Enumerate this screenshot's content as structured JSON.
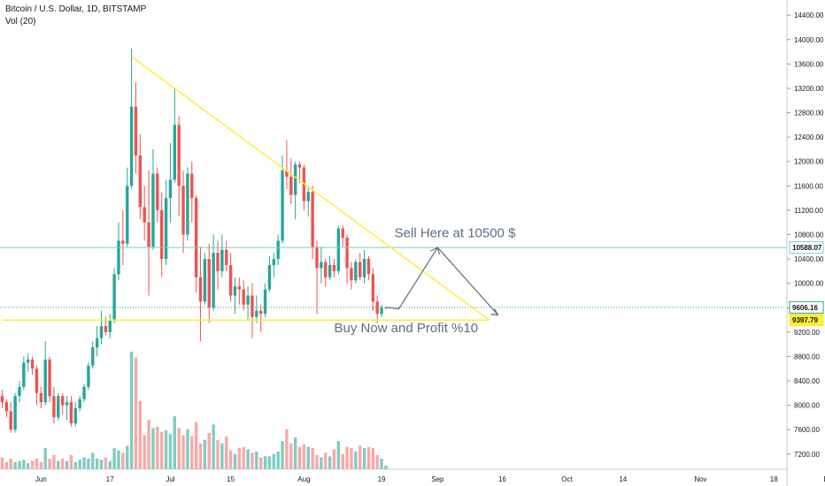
{
  "legend": {
    "title": "Bitcoin / U.S. Dollar, 1D, BITSTAMP",
    "volume": "Vol (20)"
  },
  "colors": {
    "up": "#26a69a",
    "down": "#ef5350",
    "up_volume": "#80cbc4",
    "down_volume": "#f7a9a7",
    "trendline": "#ffeb3b",
    "hline": "#80cbc4",
    "arrow": "#5d6d82",
    "support_badge": "#ffeb3b"
  },
  "chart_data": {
    "type": "candlestick",
    "title": "Bitcoin / U.S. Dollar, 1D, BITSTAMP",
    "xlabel": "",
    "ylabel": "",
    "ylim": [
      6950,
      14650
    ],
    "grid": false,
    "y_ticks": [
      "14400.00",
      "14000.00",
      "13600.00",
      "13200.00",
      "12800.00",
      "12400.00",
      "12000.00",
      "11600.00",
      "11200.00",
      "10800.00",
      "10400.00",
      "10000.00",
      "9600.00",
      "9200.00",
      "8800.00",
      "8400.00",
      "8000.00",
      "7600.00",
      "7200.00"
    ],
    "x_ticks": [
      {
        "label": "Jun",
        "day": 9
      },
      {
        "label": "17",
        "day": 25
      },
      {
        "label": "Jul",
        "day": 39
      },
      {
        "label": "15",
        "day": 53
      },
      {
        "label": "Aug",
        "day": 70
      },
      {
        "label": "19",
        "day": 88
      },
      {
        "label": "Sep",
        "day": 101
      },
      {
        "label": "16",
        "day": 116
      },
      {
        "label": "Oct",
        "day": 131
      },
      {
        "label": "14",
        "day": 144
      },
      {
        "label": "Nov",
        "day": 162
      },
      {
        "label": "18",
        "day": 179
      },
      {
        "label": "Dec",
        "day": 192
      }
    ],
    "price_labels": [
      {
        "value": 10588.07,
        "text": "10588.07",
        "style": "hline"
      },
      {
        "value": 9606.16,
        "text": "9606.16",
        "style": "current"
      },
      {
        "value": 9397.79,
        "text": "9397.79",
        "style": "support"
      }
    ],
    "candles_ohlc": [
      [
        8150,
        8250,
        7950,
        8050
      ],
      [
        8050,
        8100,
        7800,
        7900
      ],
      [
        7900,
        8050,
        7550,
        7600
      ],
      [
        7600,
        8200,
        7550,
        8150
      ],
      [
        8150,
        8400,
        8050,
        8300
      ],
      [
        8300,
        8800,
        8250,
        8700
      ],
      [
        8700,
        8850,
        8550,
        8750
      ],
      [
        8750,
        8800,
        8500,
        8600
      ],
      [
        8600,
        8650,
        8000,
        8200
      ],
      [
        8200,
        8300,
        7950,
        8050
      ],
      [
        8050,
        9050,
        8000,
        8750
      ],
      [
        8750,
        8800,
        8050,
        8150
      ],
      [
        8150,
        8300,
        7700,
        7800
      ],
      [
        7800,
        8200,
        7750,
        8150
      ],
      [
        8150,
        8200,
        7850,
        8000
      ],
      [
        8000,
        8150,
        7750,
        8050
      ],
      [
        8050,
        8150,
        7650,
        7700
      ],
      [
        7700,
        8050,
        7650,
        7950
      ],
      [
        7950,
        8150,
        7900,
        8100
      ],
      [
        8100,
        8350,
        8050,
        8300
      ],
      [
        8300,
        8700,
        8250,
        8650
      ],
      [
        8650,
        9050,
        8600,
        8950
      ],
      [
        8950,
        9300,
        8800,
        9100
      ],
      [
        9100,
        9550,
        9000,
        9300
      ],
      [
        9300,
        9450,
        9150,
        9200
      ],
      [
        9200,
        9500,
        9100,
        9400
      ],
      [
        9400,
        10250,
        9350,
        10150
      ],
      [
        10150,
        11000,
        10050,
        10700
      ],
      [
        10700,
        11200,
        10300,
        10650
      ],
      [
        10650,
        11900,
        10600,
        11600
      ],
      [
        11600,
        13850,
        11550,
        12900
      ],
      [
        12900,
        13300,
        11800,
        12100
      ],
      [
        12100,
        12450,
        11050,
        11250
      ],
      [
        11250,
        11600,
        10700,
        11000
      ],
      [
        11000,
        11850,
        9800,
        10600
      ],
      [
        10600,
        12200,
        10550,
        11800
      ],
      [
        11800,
        11900,
        11000,
        11200
      ],
      [
        11200,
        11500,
        10100,
        10400
      ],
      [
        10400,
        11700,
        10300,
        11400
      ],
      [
        11400,
        12300,
        11000,
        11700
      ],
      [
        11700,
        13200,
        11650,
        12600
      ],
      [
        12600,
        12750,
        11100,
        11600
      ],
      [
        11600,
        11850,
        10500,
        10800
      ],
      [
        10800,
        11900,
        10700,
        11800
      ],
      [
        11800,
        12000,
        11000,
        11400
      ],
      [
        11400,
        11450,
        9850,
        10100
      ],
      [
        10100,
        10600,
        9050,
        9700
      ],
      [
        9700,
        10500,
        9650,
        10400
      ],
      [
        10400,
        10650,
        9350,
        9600
      ],
      [
        9600,
        10800,
        9550,
        10500
      ],
      [
        10500,
        10700,
        9900,
        10200
      ],
      [
        10200,
        10800,
        10100,
        10550
      ],
      [
        10550,
        10700,
        10200,
        10300
      ],
      [
        10300,
        10500,
        9700,
        9800
      ],
      [
        9800,
        10100,
        9500,
        9950
      ],
      [
        9950,
        10100,
        9650,
        9900
      ],
      [
        9900,
        10050,
        9550,
        9650
      ],
      [
        9650,
        9950,
        9400,
        9800
      ],
      [
        9800,
        10000,
        9100,
        9450
      ],
      [
        9450,
        9800,
        9350,
        9550
      ],
      [
        9550,
        9650,
        9200,
        9500
      ],
      [
        9500,
        10000,
        9450,
        9900
      ],
      [
        9900,
        10450,
        9850,
        10300
      ],
      [
        10300,
        10500,
        10100,
        10400
      ],
      [
        10400,
        10800,
        10300,
        10700
      ],
      [
        10700,
        12100,
        10650,
        11850
      ],
      [
        11850,
        12350,
        11550,
        11750
      ],
      [
        11750,
        12050,
        11300,
        11450
      ],
      [
        11450,
        12000,
        11050,
        11950
      ],
      [
        11950,
        12000,
        11650,
        11900
      ],
      [
        11900,
        11950,
        11200,
        11350
      ],
      [
        11350,
        11600,
        11100,
        11500
      ],
      [
        11500,
        11600,
        10400,
        10600
      ],
      [
        10600,
        10700,
        9500,
        10250
      ],
      [
        10250,
        10600,
        10000,
        10350
      ],
      [
        10350,
        10400,
        9950,
        10100
      ],
      [
        10100,
        10450,
        10050,
        10300
      ],
      [
        10300,
        10400,
        10100,
        10200
      ],
      [
        10200,
        10950,
        10150,
        10900
      ],
      [
        10900,
        10950,
        10600,
        10750
      ],
      [
        10750,
        10800,
        10000,
        10250
      ],
      [
        10250,
        10350,
        9900,
        10050
      ],
      [
        10050,
        10400,
        10000,
        10350
      ],
      [
        10350,
        10500,
        10050,
        10100
      ],
      [
        10100,
        10550,
        10000,
        10400
      ],
      [
        10400,
        10450,
        10050,
        10150
      ],
      [
        10150,
        10250,
        9550,
        9700
      ],
      [
        9700,
        9800,
        9350,
        9500
      ],
      [
        9500,
        9650,
        9450,
        9600
      ],
      [
        9600,
        9620,
        9580,
        9606
      ]
    ],
    "volume_scale_max": 100,
    "volume_pct": [
      10,
      6,
      9,
      6,
      7,
      8,
      5,
      7,
      9,
      6,
      18,
      9,
      12,
      7,
      9,
      7,
      12,
      6,
      8,
      10,
      9,
      14,
      9,
      8,
      10,
      7,
      18,
      16,
      14,
      20,
      100,
      95,
      58,
      29,
      42,
      35,
      36,
      32,
      33,
      30,
      45,
      35,
      29,
      34,
      28,
      40,
      22,
      25,
      31,
      38,
      25,
      22,
      28,
      16,
      13,
      18,
      19,
      17,
      14,
      15,
      10,
      11,
      11,
      13,
      15,
      24,
      34,
      22,
      27,
      19,
      21,
      19,
      18,
      12,
      10,
      14,
      11,
      17,
      24,
      13,
      19,
      18,
      15,
      20,
      18,
      19,
      18,
      12,
      9,
      3
    ],
    "series": [
      {
        "name": "Vol (20)",
        "values": []
      }
    ],
    "trendlines": [
      {
        "from": {
          "day": 30,
          "price": 13720
        },
        "to": {
          "day": 113,
          "price": 9397.79
        }
      },
      {
        "from": {
          "day": 0,
          "price": 9397.79
        },
        "to": {
          "day": 113,
          "price": 9397.79
        }
      }
    ],
    "arrow_path": [
      {
        "day": 89,
        "price": 9606.16
      },
      {
        "day": 92,
        "price": 9580
      },
      {
        "day": 101,
        "price": 10588.07
      },
      {
        "day": 115,
        "price": 9480
      }
    ],
    "annotations": [
      {
        "text": "Sell Here at 10500 $",
        "day": 91,
        "price": 10760
      },
      {
        "text": "Buy Now and Profit %10",
        "day": 77,
        "price": 9200
      }
    ]
  }
}
